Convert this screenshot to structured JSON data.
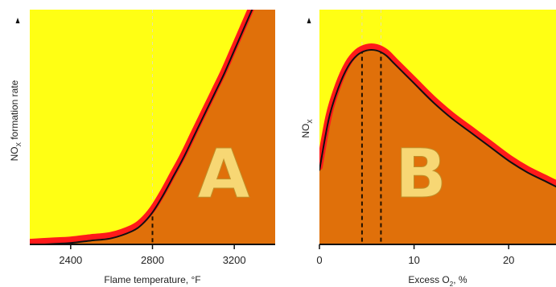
{
  "colors": {
    "upper_region": "#ffff14",
    "lower_region": "#e0700a",
    "curve_outer": "#ff1a1a",
    "curve_inner": "#111111",
    "axis": "#111111",
    "dashed_guide": "#e8e2a0",
    "panel_letter": "#f7d774"
  },
  "chart_data": [
    {
      "type": "area",
      "panel_label": "A",
      "ylabel_main": "NO",
      "ylabel_sub": "X",
      "ylabel_rest": " formation rate",
      "xlabel": "Flame temperature, °F",
      "xlim": [
        2200,
        3400
      ],
      "ylim": [
        0,
        1
      ],
      "xticks": [
        2400,
        2800,
        3200
      ],
      "tick_labels": [
        "2400",
        "2800",
        "3200"
      ],
      "y_ticks_shown": false,
      "reference_x": [
        2800
      ],
      "x": [
        2200,
        2300,
        2400,
        2500,
        2600,
        2700,
        2750,
        2800,
        2850,
        2900,
        2950,
        3000,
        3050,
        3100,
        3150,
        3200,
        3250,
        3300
      ],
      "y": [
        0.01,
        0.015,
        0.02,
        0.03,
        0.04,
        0.07,
        0.1,
        0.15,
        0.22,
        0.3,
        0.38,
        0.47,
        0.56,
        0.65,
        0.74,
        0.84,
        0.94,
        1.04
      ]
    },
    {
      "type": "area",
      "panel_label": "B",
      "ylabel_main": "NO",
      "ylabel_sub": "X",
      "ylabel_rest": "",
      "xlabel_main": "Excess O",
      "xlabel_sub": "2",
      "xlabel_rest": ", %",
      "xlim": [
        0,
        25
      ],
      "ylim": [
        0,
        1
      ],
      "xticks": [
        0,
        10,
        20
      ],
      "tick_labels": [
        "0",
        "10",
        "20"
      ],
      "y_ticks_shown": false,
      "reference_x": [
        4.5,
        6.5
      ],
      "x": [
        0,
        1,
        2,
        3,
        4,
        5,
        6,
        7,
        8,
        10,
        12,
        14,
        16,
        18,
        20,
        22,
        24,
        25
      ],
      "y": [
        0.33,
        0.55,
        0.68,
        0.77,
        0.82,
        0.84,
        0.84,
        0.82,
        0.78,
        0.7,
        0.62,
        0.55,
        0.49,
        0.43,
        0.37,
        0.32,
        0.28,
        0.26
      ]
    }
  ]
}
